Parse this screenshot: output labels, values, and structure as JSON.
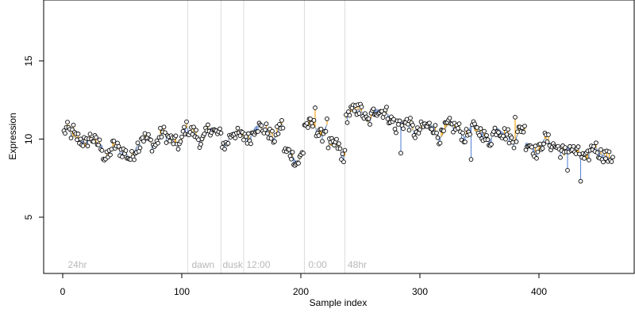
{
  "chart_data": {
    "type": "scatter",
    "title": "",
    "xlabel": "Sample index",
    "ylabel": "Expression",
    "xlim": [
      -16,
      480
    ],
    "ylim": [
      1.4,
      18.9
    ],
    "x_ticks": [
      0,
      100,
      200,
      300,
      400
    ],
    "y_ticks": [
      5,
      10,
      15
    ],
    "grid": false,
    "legend": "none",
    "colors": {
      "points_fill": "#ffffff",
      "points_stroke": "#000000",
      "positive_deviation": "#f2a007",
      "negative_deviation": "#5b87d6",
      "smooth_line": "#aab4bf",
      "separator": "#dddddd",
      "annotation_text": "#b8b8b8"
    },
    "separators": [
      105,
      133,
      152,
      203,
      237
    ],
    "annotations": [
      {
        "x": 3,
        "label": "24hr"
      },
      {
        "x": 107,
        "label": "dawn"
      },
      {
        "x": 133,
        "label": "dusk"
      },
      {
        "x": 153,
        "label": "12:00"
      },
      {
        "x": 205,
        "label": "0:00"
      },
      {
        "x": 238,
        "label": "48hr"
      }
    ],
    "segments": [
      {
        "x0": 1,
        "x1": 18,
        "base": 10.2
      },
      {
        "x0": 19,
        "x1": 33,
        "base": 9.7
      },
      {
        "x0": 34,
        "x1": 65,
        "base": 9.2
      },
      {
        "x0": 66,
        "x1": 100,
        "base": 10.0
      },
      {
        "x0": 101,
        "x1": 105,
        "base": 10.3
      },
      {
        "x0": 106,
        "x1": 133,
        "base": 10.3
      },
      {
        "x0": 134,
        "x1": 152,
        "base": 10.1
      },
      {
        "x0": 153,
        "x1": 185,
        "base": 10.5
      },
      {
        "x0": 186,
        "x1": 202,
        "base": 9.0
      },
      {
        "x0": 203,
        "x1": 222,
        "base": 10.7
      },
      {
        "x0": 223,
        "x1": 237,
        "base": 9.4
      },
      {
        "x0": 238,
        "x1": 278,
        "base": 11.6
      },
      {
        "x0": 279,
        "x1": 300,
        "base": 10.8
      },
      {
        "x0": 301,
        "x1": 345,
        "base": 10.6
      },
      {
        "x0": 346,
        "x1": 388,
        "base": 10.3
      },
      {
        "x0": 389,
        "x1": 420,
        "base": 9.6
      },
      {
        "x0": 421,
        "x1": 462,
        "base": 9.1
      }
    ],
    "noise_amplitude": 0.45,
    "highlighted_points": [
      {
        "x": 435,
        "y": 7.3
      },
      {
        "x": 424,
        "y": 8.0
      },
      {
        "x": 284,
        "y": 9.1
      },
      {
        "x": 196,
        "y": 8.4
      },
      {
        "x": 234,
        "y": 8.7
      },
      {
        "x": 248,
        "y": 12.2
      },
      {
        "x": 212,
        "y": 12.0
      },
      {
        "x": 9,
        "y": 10.9
      },
      {
        "x": 380,
        "y": 11.4
      },
      {
        "x": 343,
        "y": 8.7
      }
    ]
  }
}
